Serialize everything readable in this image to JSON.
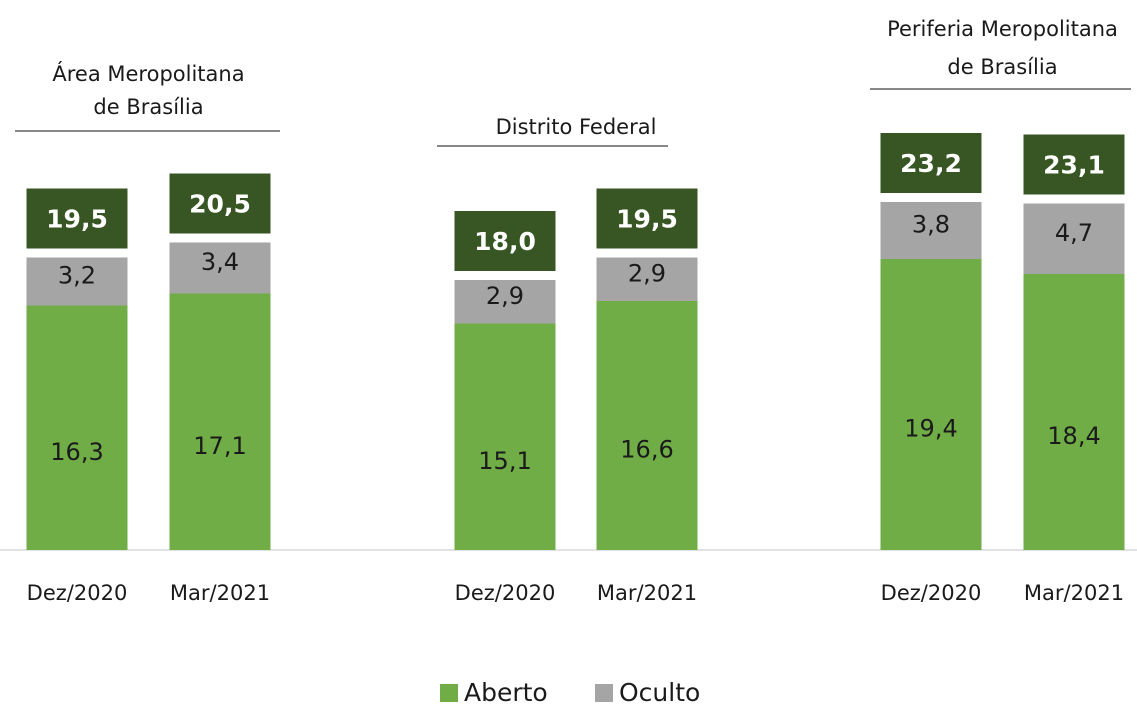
{
  "chart_data": {
    "type": "bar",
    "stacked": true,
    "legend": "bottom",
    "series": [
      {
        "name": "Aberto",
        "color": "#70ad47"
      },
      {
        "name": "Oculto",
        "color": "#a5a5a5"
      }
    ],
    "total_color": "#375623",
    "groups": [
      {
        "title": [
          "Área Meropolitana",
          "de Brasília"
        ],
        "categories": [
          "Dez/2020",
          "Mar/2021"
        ],
        "series_values": [
          [
            16.3,
            17.1
          ],
          [
            3.2,
            3.4
          ]
        ],
        "value_labels": [
          [
            "16,3",
            "17,1"
          ],
          [
            "3,2",
            "3,4"
          ]
        ],
        "totals": [
          19.5,
          20.5
        ],
        "total_labels": [
          "19,5",
          "20,5"
        ]
      },
      {
        "title": [
          "Distrito Federal"
        ],
        "categories": [
          "Dez/2020",
          "Mar/2021"
        ],
        "series_values": [
          [
            15.1,
            16.6
          ],
          [
            2.9,
            2.9
          ]
        ],
        "value_labels": [
          [
            "15,1",
            "16,6"
          ],
          [
            "2,9",
            "2,9"
          ]
        ],
        "totals": [
          18.0,
          19.5
        ],
        "total_labels": [
          "18,0",
          "19,5"
        ]
      },
      {
        "title": [
          "Periferia Meropolitana",
          "de Brasília"
        ],
        "categories": [
          "Dez/2020",
          "Mar/2021"
        ],
        "series_values": [
          [
            19.4,
            18.4
          ],
          [
            3.8,
            4.7
          ]
        ],
        "value_labels": [
          [
            "19,4",
            "18,4"
          ],
          [
            "3,8",
            "4,7"
          ]
        ],
        "totals": [
          23.2,
          23.1
        ],
        "total_labels": [
          "23,2",
          "23,1"
        ]
      }
    ]
  }
}
